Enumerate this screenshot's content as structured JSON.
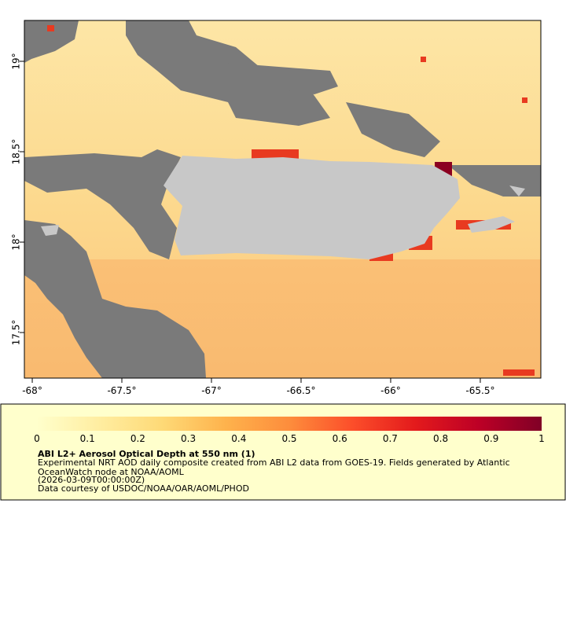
{
  "map": {
    "xlim": [
      -68.044,
      -65.162
    ],
    "ylim": [
      17.248,
      19.226
    ],
    "xticks": [
      {
        "value": -68,
        "label": "-68°"
      },
      {
        "value": -67.5,
        "label": "-67.5°"
      },
      {
        "value": -67,
        "label": "-67°"
      },
      {
        "value": -66.5,
        "label": "-66.5°"
      },
      {
        "value": -66,
        "label": "-66°"
      },
      {
        "value": -65.5,
        "label": "-65.5°"
      }
    ],
    "yticks": [
      {
        "value": 19,
        "label": "19°"
      },
      {
        "value": 18.5,
        "label": "18.5°"
      },
      {
        "value": 18,
        "label": "18°"
      },
      {
        "value": 17.5,
        "label": "17.5°"
      }
    ]
  },
  "colorbar": {
    "lim": [
      0,
      1
    ],
    "ticks": [
      0,
      0.1,
      0.2,
      0.3,
      0.4,
      0.5,
      0.6,
      0.7,
      0.8,
      0.9,
      1
    ],
    "colors": [
      "#ffffcc",
      "#ffeda0",
      "#fed976",
      "#feb24c",
      "#fd8d3c",
      "#fc4e2a",
      "#e31a1c",
      "#bd0026",
      "#800026"
    ]
  },
  "legend": {
    "title": "ABI L2+ Aerosol Optical Depth at 550 nm (1)",
    "lines": [
      "Experimental NRT AOD daily composite created from ABI L2 data from GOES-19. Fields generated by Atlantic",
      "OceanWatch node at NOAA/AOML",
      "(2026-03-09T00:00:00Z)",
      "Data courtesy of USDOC/NOAA/OAR/AOML/PHOD"
    ]
  }
}
